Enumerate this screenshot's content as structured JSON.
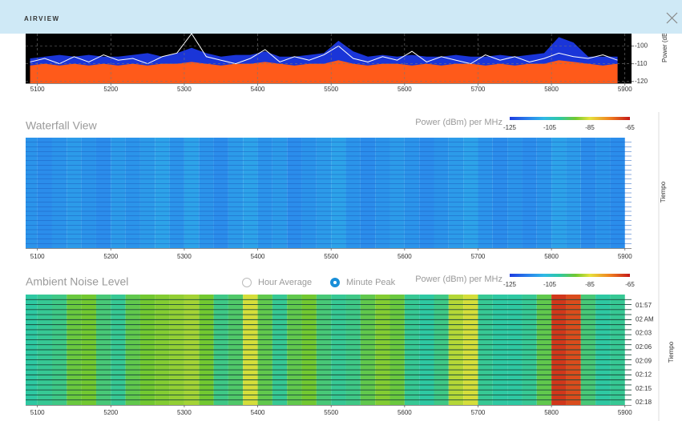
{
  "header": {
    "title": "AIRVIEW"
  },
  "chart_data": [
    {
      "type": "area",
      "y_label": "Power (dBm)",
      "grid": true,
      "xlim": [
        5084,
        5909
      ],
      "ylim": [
        -121,
        -93
      ],
      "xticks": [
        5100,
        5200,
        5300,
        5400,
        5500,
        5600,
        5700,
        5800,
        5900
      ],
      "yticks": [
        -100,
        -110,
        -120
      ],
      "x": [
        5090,
        5110,
        5130,
        5150,
        5170,
        5190,
        5210,
        5230,
        5250,
        5270,
        5290,
        5310,
        5330,
        5350,
        5370,
        5390,
        5410,
        5430,
        5450,
        5470,
        5490,
        5510,
        5530,
        5550,
        5570,
        5590,
        5610,
        5630,
        5650,
        5670,
        5690,
        5710,
        5730,
        5750,
        5770,
        5790,
        5810,
        5830,
        5850,
        5870,
        5890
      ],
      "series": [
        {
          "color": "#1a35d8",
          "values": [
            -107,
            -106,
            -105,
            -106,
            -105,
            -106,
            -106,
            -105,
            -104,
            -106,
            -104,
            -101,
            -104,
            -106,
            -105,
            -105,
            -103,
            -106,
            -106,
            -105,
            -104,
            -97,
            -103,
            -106,
            -105,
            -106,
            -105,
            -106,
            -106,
            -105,
            -106,
            -106,
            -105,
            -106,
            -105,
            -104,
            -95,
            -98,
            -106,
            -106,
            -106
          ]
        },
        {
          "color": "#ff5a1a",
          "values": [
            -111,
            -110,
            -111,
            -110,
            -111,
            -110,
            -111,
            -110,
            -111,
            -110,
            -110,
            -109,
            -110,
            -111,
            -110,
            -110,
            -109,
            -110,
            -111,
            -110,
            -110,
            -108,
            -110,
            -111,
            -110,
            -110,
            -111,
            -110,
            -111,
            -110,
            -110,
            -111,
            -110,
            -111,
            -110,
            -110,
            -108,
            -109,
            -110,
            -111,
            -110
          ]
        },
        {
          "color": "#ffffff",
          "values": [
            -109,
            -107,
            -110,
            -106,
            -109,
            -105,
            -108,
            -107,
            -110,
            -106,
            -104,
            -93,
            -106,
            -108,
            -110,
            -107,
            -102,
            -109,
            -106,
            -108,
            -105,
            -100,
            -107,
            -109,
            -106,
            -108,
            -103,
            -109,
            -106,
            -108,
            -110,
            -105,
            -108,
            -106,
            -109,
            -107,
            -104,
            -106,
            -107,
            -105,
            -108
          ]
        }
      ]
    },
    {
      "type": "heatmap",
      "title": "Waterfall View",
      "colorbar_label": "Power (dBm) per MHz",
      "y_label": "Tiempo",
      "clim": [
        -125,
        -65
      ],
      "colorbar_ticks": [
        -125,
        -105,
        -85,
        -65
      ],
      "colorscale": [
        {
          "value": -125,
          "color": "#1e3ce0"
        },
        {
          "value": -115,
          "color": "#2a86ec"
        },
        {
          "value": -108,
          "color": "#2fb8e6"
        },
        {
          "value": -100,
          "color": "#2ec8a2"
        },
        {
          "value": -92,
          "color": "#72c830"
        },
        {
          "value": -85,
          "color": "#e6e23c"
        },
        {
          "value": -75,
          "color": "#f08020"
        },
        {
          "value": -65,
          "color": "#c41818"
        }
      ],
      "xlim": [
        5084,
        5909
      ],
      "xticks": [
        5100,
        5200,
        5300,
        5400,
        5500,
        5600,
        5700,
        5800,
        5900
      ],
      "x": [
        5090,
        5110,
        5130,
        5150,
        5170,
        5190,
        5210,
        5230,
        5250,
        5270,
        5290,
        5310,
        5330,
        5350,
        5370,
        5390,
        5410,
        5430,
        5450,
        5470,
        5490,
        5510,
        5530,
        5550,
        5570,
        5590,
        5610,
        5630,
        5650,
        5670,
        5690,
        5710,
        5730,
        5750,
        5770,
        5790,
        5810,
        5830,
        5850,
        5870,
        5890
      ],
      "values": [
        -113,
        -114,
        -113,
        -112,
        -113,
        -114,
        -112,
        -113,
        -112,
        -111,
        -113,
        -111,
        -113,
        -114,
        -112,
        -111,
        -113,
        -112,
        -114,
        -113,
        -112,
        -111,
        -113,
        -114,
        -113,
        -112,
        -113,
        -114,
        -113,
        -112,
        -111,
        -113,
        -114,
        -113,
        -114,
        -113,
        -111,
        -112,
        -114,
        -113,
        -114
      ]
    },
    {
      "type": "heatmap",
      "title": "Ambient Noise Level",
      "colorbar_label": "Power (dBm) per MHz",
      "y_label": "Tiempo",
      "options": [
        "Hour Average",
        "Minute Peak"
      ],
      "selected": 1,
      "time_labels": [
        "01:57",
        "02 AM",
        "02:03",
        "02:06",
        "02:09",
        "02:12",
        "02:15",
        "02:18"
      ],
      "clim": [
        -125,
        -65
      ],
      "colorbar_ticks": [
        -125,
        -105,
        -85,
        -65
      ],
      "colorscale": [
        {
          "value": -125,
          "color": "#1e3ce0"
        },
        {
          "value": -115,
          "color": "#2a86ec"
        },
        {
          "value": -108,
          "color": "#2fb8e6"
        },
        {
          "value": -100,
          "color": "#2ec8a2"
        },
        {
          "value": -92,
          "color": "#72c830"
        },
        {
          "value": -85,
          "color": "#e6e23c"
        },
        {
          "value": -75,
          "color": "#f08020"
        },
        {
          "value": -65,
          "color": "#c41818"
        }
      ],
      "xlim": [
        5084,
        5909
      ],
      "xticks": [
        5100,
        5200,
        5300,
        5400,
        5500,
        5600,
        5700,
        5800,
        5900
      ],
      "x": [
        5090,
        5110,
        5130,
        5150,
        5170,
        5190,
        5210,
        5230,
        5250,
        5270,
        5290,
        5310,
        5330,
        5350,
        5370,
        5390,
        5410,
        5430,
        5450,
        5470,
        5490,
        5510,
        5530,
        5550,
        5570,
        5590,
        5610,
        5630,
        5650,
        5670,
        5690,
        5710,
        5730,
        5750,
        5770,
        5790,
        5810,
        5830,
        5850,
        5870,
        5890
      ],
      "values": [
        -100,
        -99,
        -98,
        -93,
        -92,
        -97,
        -99,
        -94,
        -92,
        -91,
        -90,
        -89,
        -92,
        -98,
        -96,
        -86,
        -94,
        -99,
        -94,
        -92,
        -97,
        -99,
        -98,
        -94,
        -91,
        -93,
        -99,
        -100,
        -98,
        -88,
        -86,
        -99,
        -100,
        -100,
        -99,
        -94,
        -68,
        -70,
        -97,
        -100,
        -99
      ]
    }
  ]
}
